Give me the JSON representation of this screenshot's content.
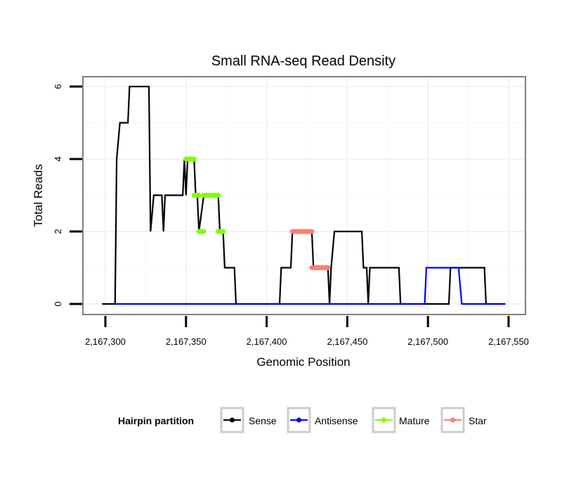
{
  "chart_data": {
    "type": "line",
    "title": "Small RNA-seq Read Density",
    "xlabel": "Genomic Position",
    "ylabel": "Total Reads",
    "xlim": [
      2167290,
      2167555
    ],
    "ylim": [
      -0.3,
      6.3
    ],
    "x_ticks": [
      2167300,
      2167350,
      2167400,
      2167450,
      2167500,
      2167550
    ],
    "x_tick_labels": [
      "2,167,300",
      "2,167,350",
      "2,167,400",
      "2,167,450",
      "2,167,500",
      "2,167,550"
    ],
    "y_ticks": [
      0,
      2,
      4,
      6
    ],
    "y_tick_labels": [
      "0",
      "2",
      "4",
      "6"
    ],
    "grid": true,
    "legend": {
      "title": "Hairpin partition",
      "placement": "bottom",
      "entries": [
        {
          "name": "Sense",
          "color": "#000000"
        },
        {
          "name": "Antisense",
          "color": "#0000ff"
        },
        {
          "name": "Mature",
          "color": "#7fff00"
        },
        {
          "name": "Star",
          "color": "#fa8072"
        }
      ]
    },
    "series": [
      {
        "name": "Sense",
        "color": "#000000",
        "style": "line",
        "x": [
          2167298,
          2167306,
          2167307,
          2167309,
          2167314,
          2167315,
          2167327,
          2167328,
          2167330,
          2167335,
          2167336,
          2167337,
          2167348,
          2167349,
          2167350,
          2167351,
          2167355,
          2167356,
          2167357,
          2167358,
          2167361,
          2167370,
          2167371,
          2167373,
          2167374,
          2167380,
          2167381,
          2167408,
          2167409,
          2167415,
          2167416,
          2167428,
          2167429,
          2167438,
          2167439,
          2167440,
          2167442,
          2167459,
          2167460,
          2167462,
          2167463,
          2167464,
          2167482,
          2167483,
          2167513,
          2167514,
          2167535,
          2167536,
          2167548
        ],
        "y": [
          0,
          0,
          4,
          5,
          5,
          6,
          6,
          2,
          3,
          3,
          2,
          3,
          3,
          4,
          3,
          4,
          4,
          3,
          3,
          2,
          3,
          3,
          2,
          2,
          1,
          1,
          0,
          0,
          1,
          1,
          2,
          2,
          1,
          1,
          0,
          1,
          2,
          2,
          1,
          1,
          0,
          1,
          1,
          0,
          0,
          1,
          1,
          0,
          0
        ]
      },
      {
        "name": "Antisense",
        "color": "#0000ff",
        "style": "line",
        "x": [
          2167306,
          2167498,
          2167499,
          2167519,
          2167521,
          2167548
        ],
        "y": [
          0,
          0,
          1,
          1,
          0,
          0
        ]
      },
      {
        "name": "Mature",
        "color": "#7fff00",
        "style": "thick-segments",
        "segments": [
          {
            "x0": 2167350,
            "x1": 2167355,
            "y": 4
          },
          {
            "x0": 2167355,
            "x1": 2167358,
            "y": 3
          },
          {
            "x0": 2167358,
            "x1": 2167361,
            "y": 2
          },
          {
            "x0": 2167361,
            "x1": 2167370,
            "y": 3
          },
          {
            "x0": 2167370,
            "x1": 2167373,
            "y": 2
          }
        ]
      },
      {
        "name": "Star",
        "color": "#fa8072",
        "style": "thick-segments",
        "segments": [
          {
            "x0": 2167416,
            "x1": 2167428,
            "y": 2
          },
          {
            "x0": 2167428,
            "x1": 2167438,
            "y": 1
          }
        ]
      }
    ]
  }
}
